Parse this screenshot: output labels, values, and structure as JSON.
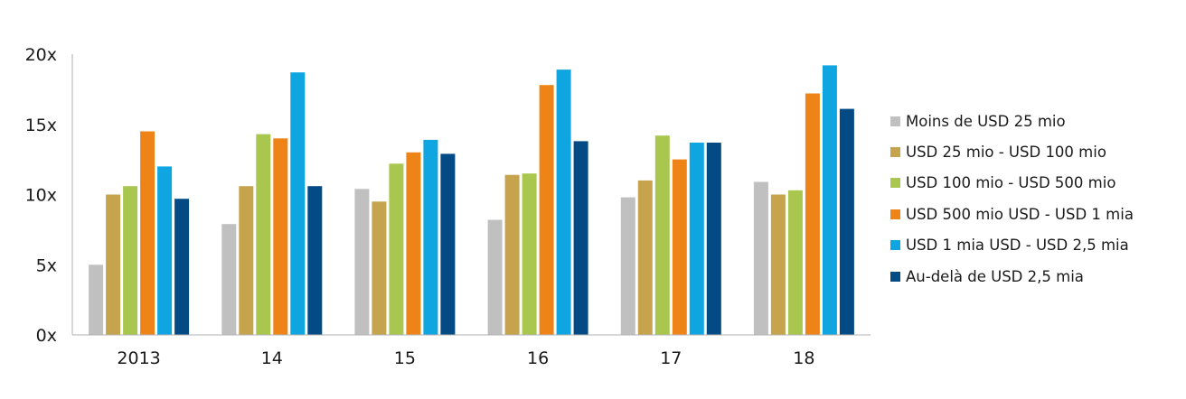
{
  "chart_data": {
    "type": "bar",
    "categories": [
      "2013",
      "14",
      "15",
      "16",
      "17",
      "18"
    ],
    "y_ticks": [
      "0x",
      "5x",
      "10x",
      "15x",
      "20x"
    ],
    "ylim": [
      0,
      20
    ],
    "grid": false,
    "legend_position": "right",
    "series": [
      {
        "name": "Moins de USD 25 mio",
        "color": "#c0c0c0",
        "values": [
          5.0,
          7.9,
          10.4,
          8.2,
          9.8,
          10.9
        ]
      },
      {
        "name": "USD 25 mio - USD 100 mio",
        "color": "#c6a44e",
        "values": [
          10.0,
          10.6,
          9.5,
          11.4,
          11.0,
          10.0
        ]
      },
      {
        "name": "USD 100 mio - USD 500 mio",
        "color": "#a9c74f",
        "values": [
          10.6,
          14.3,
          12.2,
          11.5,
          14.2,
          10.3
        ]
      },
      {
        "name": "USD 500 mio USD - USD 1 mia",
        "color": "#ee8418",
        "values": [
          14.5,
          14.0,
          13.0,
          17.8,
          12.5,
          17.2
        ]
      },
      {
        "name": "USD 1 mia USD - USD 2,5 mia",
        "color": "#0ea5e0",
        "values": [
          12.0,
          18.7,
          13.9,
          18.9,
          13.7,
          19.2
        ]
      },
      {
        "name": "Au-delà de USD 2,5 mia",
        "color": "#044a85",
        "values": [
          9.7,
          10.6,
          12.9,
          13.8,
          13.7,
          16.1
        ]
      }
    ]
  }
}
